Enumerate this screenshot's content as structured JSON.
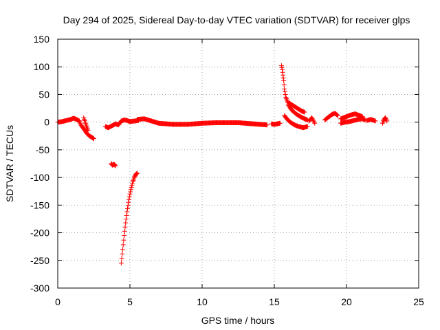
{
  "chart_data": {
    "type": "scatter",
    "title": "Day 294 of 2025, Sidereal Day-to-day VTEC variation (SDTVAR) for receiver glps",
    "xlabel": "GPS time / hours",
    "ylabel": "SDTVAR / TECUs",
    "xlim": [
      0,
      25
    ],
    "ylim": [
      -300,
      150
    ],
    "xticks": [
      "0",
      "5",
      "10",
      "15",
      "20",
      "25"
    ],
    "yticks": [
      "150",
      "100",
      "50",
      "0",
      "-50",
      "-100",
      "-150",
      "-200",
      "-250",
      "-300"
    ],
    "grid": true,
    "marker": "+",
    "color": "#ff0000",
    "segments": [
      {
        "x": [
          0.0,
          0.3,
          0.6,
          0.9,
          1.1,
          1.3,
          1.5
        ],
        "y": [
          0,
          1,
          3,
          5,
          7,
          5,
          2
        ]
      },
      {
        "x": [
          1.5,
          1.6,
          1.8,
          2.0,
          2.2,
          2.4,
          2.5
        ],
        "y": [
          2,
          -5,
          -12,
          -20,
          -25,
          -28,
          -30
        ]
      },
      {
        "x": [
          1.8,
          1.9,
          2.0,
          2.1
        ],
        "y": [
          8,
          0,
          -8,
          -15
        ]
      },
      {
        "x": [
          3.3,
          3.5,
          3.8,
          4.0,
          4.2,
          4.4,
          4.6,
          4.8,
          5.0,
          5.3,
          5.6
        ],
        "y": [
          -8,
          -10,
          -6,
          -3,
          -5,
          2,
          4,
          3,
          1,
          2,
          3
        ]
      },
      {
        "x": [
          3.7,
          3.8,
          3.9,
          4.0
        ],
        "y": [
          -75,
          -78,
          -76,
          -79
        ]
      },
      {
        "x": [
          4.4,
          4.5,
          4.6,
          4.7,
          4.8,
          4.9,
          5.0,
          5.1,
          5.2,
          5.3,
          5.4,
          5.5
        ],
        "y": [
          -255,
          -230,
          -205,
          -182,
          -162,
          -145,
          -130,
          -118,
          -108,
          -100,
          -95,
          -92
        ]
      },
      {
        "x": [
          5.5,
          6.0,
          6.5,
          7.0,
          8.0,
          9.0,
          10.0,
          11.0,
          12.0,
          12.5,
          13.0,
          13.5,
          14.0,
          14.5
        ],
        "y": [
          5,
          6,
          2,
          -2,
          -4,
          -4,
          -2,
          -1,
          -1,
          -1,
          -2,
          -3,
          -4,
          -5
        ]
      },
      {
        "x": [
          14.8,
          15.0,
          15.2,
          15.4
        ],
        "y": [
          -3,
          -4,
          -3,
          -2
        ]
      },
      {
        "x": [
          15.5,
          15.55,
          15.6,
          15.65,
          15.7,
          15.8,
          15.9,
          16.0,
          16.2,
          16.5,
          16.8,
          17.1,
          17.3
        ],
        "y": [
          102,
          95,
          85,
          75,
          60,
          45,
          38,
          30,
          22,
          15,
          10,
          6,
          4
        ]
      },
      {
        "x": [
          15.7,
          15.9,
          16.1,
          16.4,
          16.7,
          17.0,
          17.3
        ],
        "y": [
          12,
          5,
          0,
          -5,
          -8,
          -10,
          -8
        ]
      },
      {
        "x": [
          16.0,
          16.3,
          16.6,
          16.9,
          17.1
        ],
        "y": [
          35,
          30,
          25,
          20,
          18
        ]
      },
      {
        "x": [
          17.4,
          17.6,
          17.8
        ],
        "y": [
          2,
          8,
          -2
        ]
      },
      {
        "x": [
          18.5,
          18.8,
          19.0,
          19.2,
          19.4
        ],
        "y": [
          4,
          10,
          14,
          16,
          12
        ]
      },
      {
        "x": [
          19.6,
          19.8,
          20.0,
          20.3,
          20.6,
          20.9,
          21.1
        ],
        "y": [
          6,
          8,
          10,
          13,
          15,
          12,
          10
        ]
      },
      {
        "x": [
          19.6,
          19.9,
          20.2,
          20.5,
          20.8,
          21.1,
          21.3
        ],
        "y": [
          -2,
          0,
          1,
          3,
          5,
          6,
          4
        ]
      },
      {
        "x": [
          21.4,
          21.7,
          22.0
        ],
        "y": [
          3,
          5,
          2
        ]
      },
      {
        "x": [
          22.5,
          22.6,
          22.7,
          22.8
        ],
        "y": [
          -2,
          5,
          8,
          2
        ]
      }
    ]
  }
}
